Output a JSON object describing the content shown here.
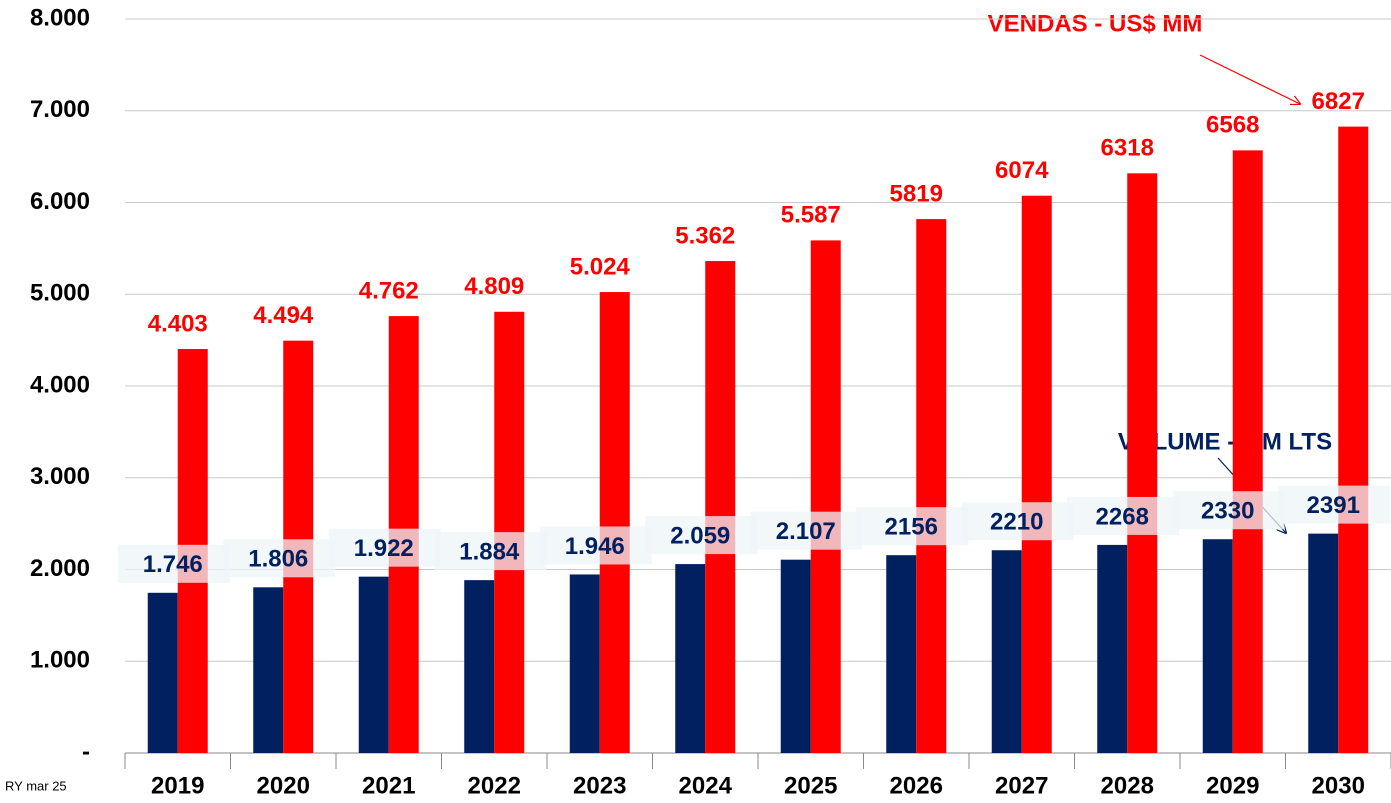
{
  "chart_data": {
    "type": "bar",
    "categories": [
      "2019",
      "2020",
      "2021",
      "2022",
      "2023",
      "2024",
      "2025",
      "2026",
      "2027",
      "2028",
      "2029",
      "2030"
    ],
    "series": [
      {
        "name": "VOLUME - MM LTS",
        "color": "#002060",
        "values": [
          1746,
          1806,
          1922,
          1884,
          1946,
          2059,
          2107,
          2156,
          2210,
          2268,
          2330,
          2391
        ],
        "value_labels": [
          "1.746",
          "1.806",
          "1.922",
          "1.884",
          "1.946",
          "2.059",
          "2.107",
          "2156",
          "2210",
          "2268",
          "2330",
          "2391"
        ]
      },
      {
        "name": "VENDAS - US$ MM",
        "color": "#ff0000",
        "values": [
          4403,
          4494,
          4762,
          4809,
          5024,
          5362,
          5587,
          5819,
          6074,
          6318,
          6568,
          6827
        ],
        "value_labels": [
          "4.403",
          "4.494",
          "4.762",
          "4.809",
          "5.024",
          "5.362",
          "5.587",
          "5819",
          "6074",
          "6318",
          "6568",
          "6827"
        ]
      }
    ],
    "ylim": [
      0,
      8000
    ],
    "yticks": [
      {
        "value": 0,
        "label": "-"
      },
      {
        "value": 1000,
        "label": "1.000"
      },
      {
        "value": 2000,
        "label": "2.000"
      },
      {
        "value": 3000,
        "label": "3.000"
      },
      {
        "value": 4000,
        "label": "4.000"
      },
      {
        "value": 5000,
        "label": "5.000"
      },
      {
        "value": 6000,
        "label": "6.000"
      },
      {
        "value": 7000,
        "label": "7.000"
      },
      {
        "value": 8000,
        "label": "8.000"
      }
    ],
    "grid": true,
    "footnote": "RY mar 25"
  }
}
